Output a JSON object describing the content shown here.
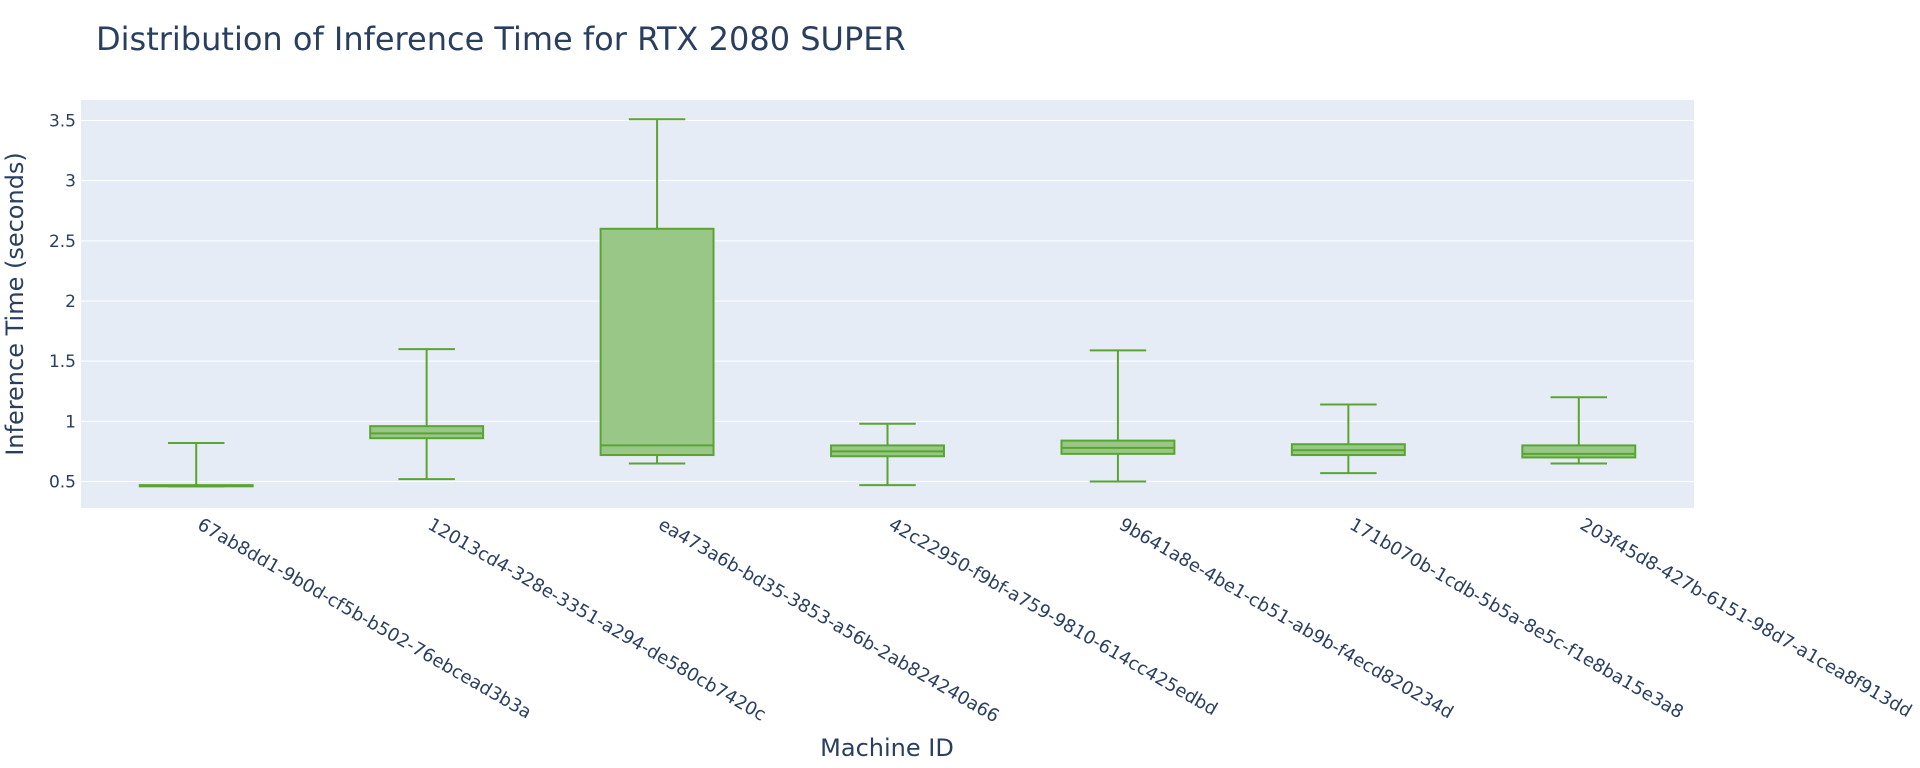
{
  "chart_data": {
    "type": "box",
    "title": "Distribution of Inference Time for RTX 2080 SUPER",
    "xlabel": "Machine ID",
    "ylabel": "Inference Time (seconds)",
    "ylim": [
      0.28,
      3.67
    ],
    "y_ticks": [
      0.5,
      1,
      1.5,
      2,
      2.5,
      3,
      3.5
    ],
    "y_tick_labels": [
      "0.5",
      "1",
      "1.5",
      "2",
      "2.5",
      "3",
      "3.5"
    ],
    "grid": true,
    "legend": "none",
    "colors": {
      "plot_background": "#e5ecf6",
      "grid": "#ffffff",
      "box_fill": "#98c788",
      "box_line": "#5aa532",
      "text": "#2a3f5f"
    },
    "categories": [
      "67ab8dd1-9b0d-cf5b-b502-76ebcead3b3a",
      "12013cd4-328e-3351-a294-de580cb7420c",
      "ea473a6b-bd35-3853-a56b-2ab824240a66",
      "42c22950-f9bf-a759-9810-614cc425edbd",
      "9b641a8e-4be1-cb51-ab9b-f4ecd820234d",
      "171b070b-1cdb-5b5a-8e5c-f1e8ba15e3a8",
      "203f45d8-427b-6151-98d7-a1cea8f913dd"
    ],
    "boxes": [
      {
        "min": 0.46,
        "q1": 0.46,
        "median": 0.465,
        "q3": 0.47,
        "max": 0.82
      },
      {
        "min": 0.52,
        "q1": 0.86,
        "median": 0.9,
        "q3": 0.96,
        "max": 1.6
      },
      {
        "min": 0.65,
        "q1": 0.72,
        "median": 0.8,
        "q3": 2.6,
        "max": 3.51
      },
      {
        "min": 0.47,
        "q1": 0.71,
        "median": 0.75,
        "q3": 0.8,
        "max": 0.98
      },
      {
        "min": 0.5,
        "q1": 0.73,
        "median": 0.78,
        "q3": 0.84,
        "max": 1.59
      },
      {
        "min": 0.57,
        "q1": 0.72,
        "median": 0.76,
        "q3": 0.81,
        "max": 1.14
      },
      {
        "min": 0.65,
        "q1": 0.7,
        "median": 0.73,
        "q3": 0.8,
        "max": 1.2
      }
    ]
  }
}
